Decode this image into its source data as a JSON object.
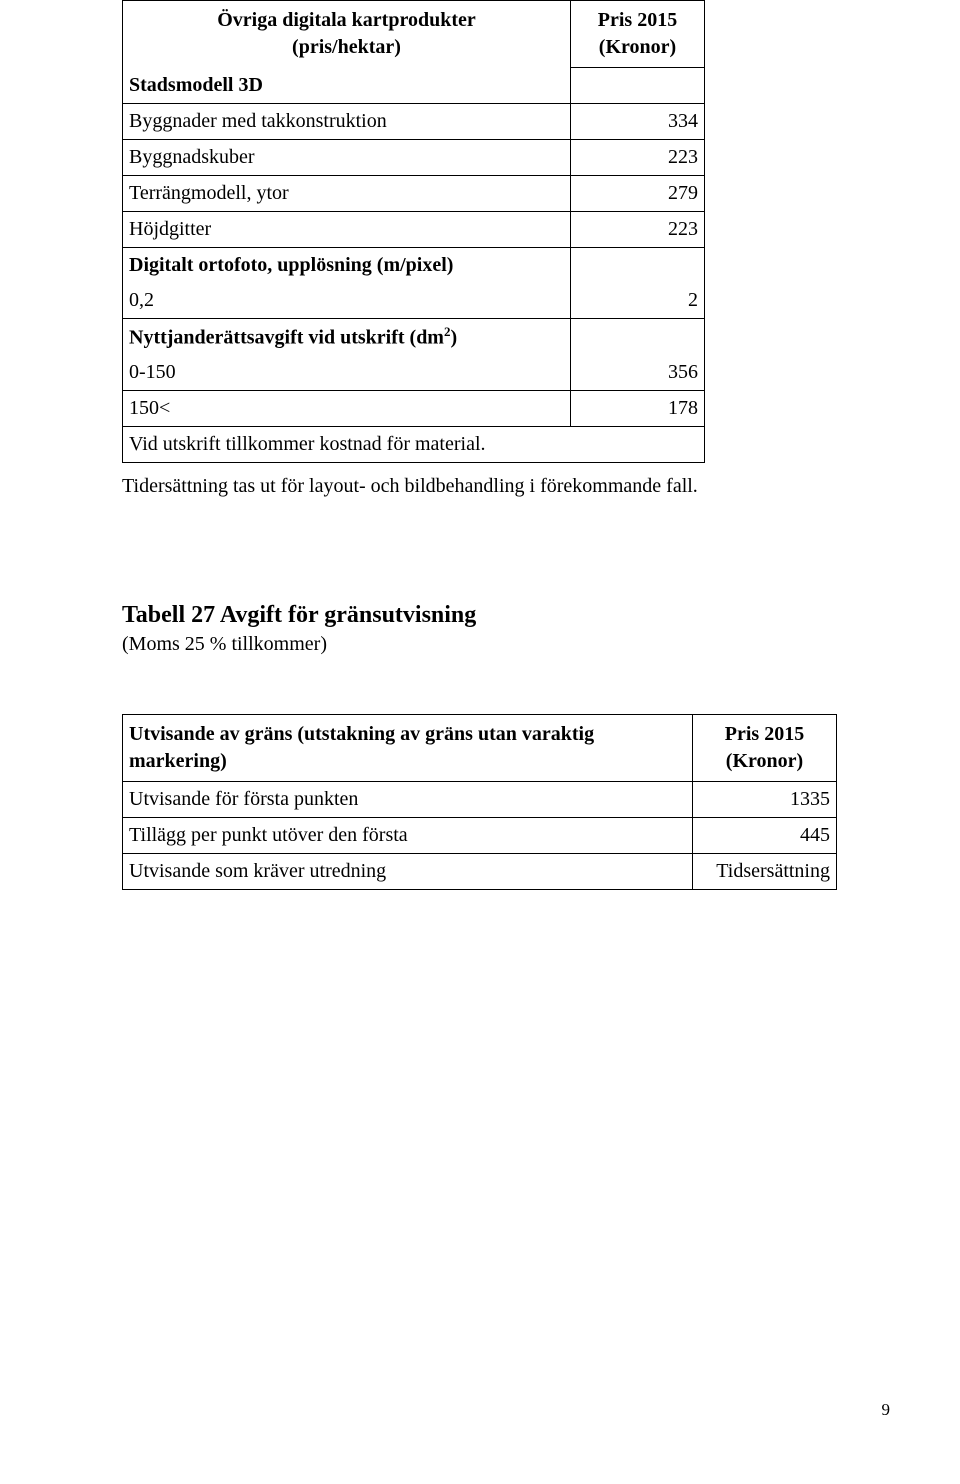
{
  "table1": {
    "header_left_line1": "Övriga digitala kartprodukter",
    "header_left_line2": "(pris/hektar)",
    "header_right_line1": "Pris 2015",
    "header_right_line2": "(Kronor)",
    "section_stadsmodell": "Stadsmodell 3D",
    "rows_stadsmodell": [
      {
        "label": "Byggnader med takkonstruktion",
        "value": "334"
      },
      {
        "label": "Byggnadskuber",
        "value": "223"
      },
      {
        "label": "Terrängmodell, ytor",
        "value": "279"
      },
      {
        "label": "Höjdgitter",
        "value": "223"
      }
    ],
    "section_ortofoto": "Digitalt ortofoto, upplösning (m/pixel)",
    "rows_ortofoto": [
      {
        "label": "0,2",
        "value": "2"
      }
    ],
    "section_nyttjande_pre": "Nyttjanderättsavgift vid utskrift (dm",
    "section_nyttjande_sup": "2",
    "section_nyttjande_post": ")",
    "rows_nyttjande": [
      {
        "label": "0-150",
        "value": "356"
      },
      {
        "label": "150<",
        "value": "178"
      }
    ],
    "footnote": "Vid utskrift tillkommer kostnad för material."
  },
  "after_table_sentence": "Tidersättning tas ut för layout- och bildbehandling i förekommande fall.",
  "section2": {
    "heading": "Tabell 27 Avgift för gränsutvisning",
    "subheading": "(Moms 25 % tillkommer)"
  },
  "table2": {
    "header_left_line1": "Utvisande av gräns (utstakning av gräns utan varaktig",
    "header_left_line2": "markering)",
    "header_right_line1": "Pris 2015",
    "header_right_line2": "(Kronor)",
    "rows": [
      {
        "label": "Utvisande för första punkten",
        "value": "1335"
      },
      {
        "label": "Tillägg per punkt utöver den första",
        "value": "445"
      },
      {
        "label": "Utvisande som kräver utredning",
        "value": "Tidsersättning"
      }
    ]
  },
  "page_number": "9"
}
